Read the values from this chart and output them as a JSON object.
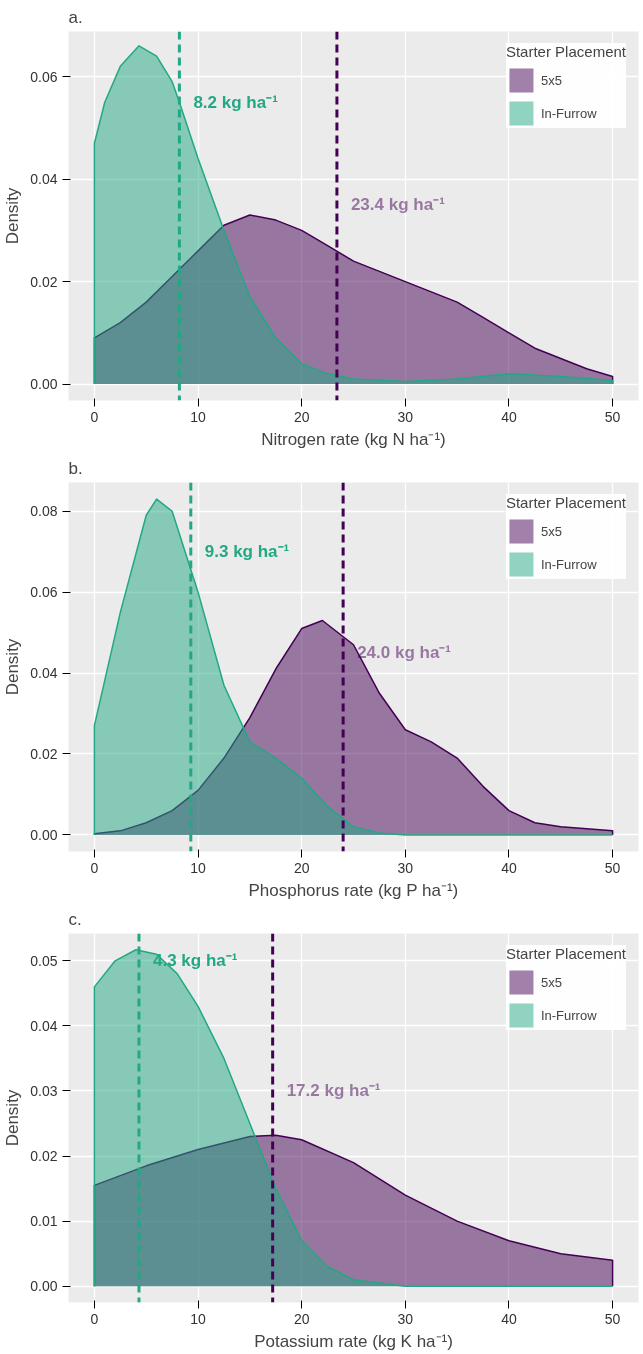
{
  "chart_data": [
    {
      "type": "area",
      "title": "a.",
      "xlabel": "Nitrogen rate (kg N ha⁻¹)",
      "ylabel": "Density",
      "legend_title": "Starter Placement",
      "legend": "top right",
      "grid": true,
      "xlim": [
        -2.5,
        52.5
      ],
      "xticks": [
        0,
        10,
        20,
        30,
        40,
        50
      ],
      "ylim": [
        -0.0032,
        0.0688
      ],
      "yticks": [
        {
          "value": 0,
          "label": "0.00"
        },
        {
          "value": 0.02,
          "label": "0.02"
        },
        {
          "value": 0.04,
          "label": "0.04"
        },
        {
          "value": 0.06,
          "label": "0.06"
        }
      ],
      "series": [
        {
          "name": "5x5",
          "color": "#440154",
          "x": [
            0,
            2.5,
            5,
            7.5,
            10,
            12.5,
            15,
            17.5,
            20,
            22.5,
            25,
            27.5,
            30,
            32.5,
            35,
            37.5,
            40,
            42.5,
            45,
            47.5,
            50
          ],
          "values": [
            0.009,
            0.012,
            0.016,
            0.021,
            0.026,
            0.031,
            0.033,
            0.032,
            0.03,
            0.027,
            0.024,
            0.022,
            0.02,
            0.018,
            0.016,
            0.013,
            0.01,
            0.007,
            0.005,
            0.003,
            0.0015
          ]
        },
        {
          "name": "In-Furrow",
          "color": "#22a884",
          "x": [
            0,
            1,
            2.5,
            4.3,
            6,
            7.5,
            8.2,
            10,
            12.5,
            15,
            17.5,
            20,
            22.5,
            25,
            30,
            35,
            40,
            45,
            50
          ],
          "values": [
            0.047,
            0.055,
            0.062,
            0.066,
            0.064,
            0.059,
            0.055,
            0.044,
            0.03,
            0.017,
            0.009,
            0.004,
            0.002,
            0.001,
            0.0005,
            0.001,
            0.002,
            0.0015,
            0.0007
          ]
        }
      ],
      "ref_lines": [
        {
          "axis": "x",
          "value": 8.2,
          "color": "#22a884",
          "line_style": "dashed"
        },
        {
          "axis": "x",
          "value": 23.4,
          "color": "#440154",
          "line_style": "dashed"
        }
      ],
      "annotations": [
        {
          "text": "8.2 kg ha⁻¹",
          "x": 8.2,
          "y": 0.055
        },
        {
          "text": "23.4 kg ha⁻¹",
          "x": 23.4,
          "y": 0.035
        }
      ]
    },
    {
      "type": "area",
      "title": "b.",
      "xlabel": "Phosphorus rate (kg P ha⁻¹)",
      "ylabel": "Density",
      "legend_title": "Starter Placement",
      "legend": "top right",
      "grid": true,
      "xlim": [
        -2.5,
        52.5
      ],
      "xticks": [
        0,
        10,
        20,
        30,
        40,
        50
      ],
      "ylim": [
        -0.0041,
        0.0871
      ],
      "yticks": [
        {
          "value": 0,
          "label": "0.00"
        },
        {
          "value": 0.02,
          "label": "0.02"
        },
        {
          "value": 0.04,
          "label": "0.04"
        },
        {
          "value": 0.06,
          "label": "0.06"
        },
        {
          "value": 0.08,
          "label": "0.08"
        }
      ],
      "series": [
        {
          "name": "5x5",
          "color": "#440154",
          "x": [
            0,
            2.5,
            5,
            7.5,
            10,
            12.5,
            15,
            17.5,
            20,
            22,
            25,
            27.5,
            30,
            32.5,
            35,
            37.5,
            40,
            42.5,
            45,
            50
          ],
          "values": [
            0.0003,
            0.001,
            0.003,
            0.006,
            0.011,
            0.019,
            0.029,
            0.041,
            0.051,
            0.053,
            0.047,
            0.035,
            0.026,
            0.023,
            0.019,
            0.012,
            0.006,
            0.003,
            0.002,
            0.001
          ]
        },
        {
          "name": "In-Furrow",
          "color": "#22a884",
          "x": [
            0,
            2.5,
            5,
            6,
            7.5,
            10,
            12.5,
            15,
            17.5,
            20,
            22.5,
            25,
            27.5,
            30,
            40,
            50
          ],
          "values": [
            0.027,
            0.055,
            0.079,
            0.083,
            0.08,
            0.06,
            0.037,
            0.023,
            0.019,
            0.014,
            0.007,
            0.002,
            0.0005,
            0,
            0,
            0
          ]
        }
      ],
      "ref_lines": [
        {
          "axis": "x",
          "value": 9.3,
          "color": "#22a884",
          "line_style": "dashed"
        },
        {
          "axis": "x",
          "value": 24.0,
          "color": "#440154",
          "line_style": "dashed"
        }
      ],
      "annotations": [
        {
          "text": "9.3 kg ha⁻¹",
          "x": 9.3,
          "y": 0.07
        },
        {
          "text": "24.0 kg ha⁻¹",
          "x": 24.0,
          "y": 0.045
        }
      ]
    },
    {
      "type": "area",
      "title": "c.",
      "xlabel": "Potassium rate (kg K ha⁻¹)",
      "ylabel": "Density",
      "legend_title": "Starter Placement",
      "legend": "top right",
      "grid": true,
      "xlim": [
        -2.5,
        52.5
      ],
      "xticks": [
        0,
        10,
        20,
        30,
        40,
        50
      ],
      "ylim": [
        -0.0025,
        0.0542
      ],
      "yticks": [
        {
          "value": 0,
          "label": "0.00"
        },
        {
          "value": 0.01,
          "label": "0.01"
        },
        {
          "value": 0.02,
          "label": "0.02"
        },
        {
          "value": 0.03,
          "label": "0.03"
        },
        {
          "value": 0.04,
          "label": "0.04"
        },
        {
          "value": 0.05,
          "label": "0.05"
        }
      ],
      "series": [
        {
          "name": "5x5",
          "color": "#440154",
          "x": [
            0,
            5,
            10,
            15,
            17.5,
            20,
            25,
            30,
            35,
            40,
            45,
            50
          ],
          "values": [
            0.0155,
            0.0185,
            0.021,
            0.023,
            0.0232,
            0.0225,
            0.019,
            0.014,
            0.01,
            0.007,
            0.005,
            0.004
          ]
        },
        {
          "name": "In-Furrow",
          "color": "#22a884",
          "x": [
            0,
            2,
            4,
            6,
            8,
            10,
            12.5,
            15,
            17.5,
            20,
            22.5,
            25,
            30,
            50
          ],
          "values": [
            0.046,
            0.05,
            0.0517,
            0.051,
            0.048,
            0.043,
            0.035,
            0.025,
            0.015,
            0.007,
            0.003,
            0.001,
            0,
            0
          ]
        }
      ],
      "ref_lines": [
        {
          "axis": "x",
          "value": 4.3,
          "color": "#22a884",
          "line_style": "dashed"
        },
        {
          "axis": "x",
          "value": 17.2,
          "color": "#440154",
          "line_style": "dashed"
        }
      ],
      "annotations": [
        {
          "text": "4.3 kg ha⁻¹",
          "x": 4.3,
          "y": 0.05
        },
        {
          "text": "17.2 kg ha⁻¹",
          "x": 17.2,
          "y": 0.03
        }
      ]
    }
  ]
}
